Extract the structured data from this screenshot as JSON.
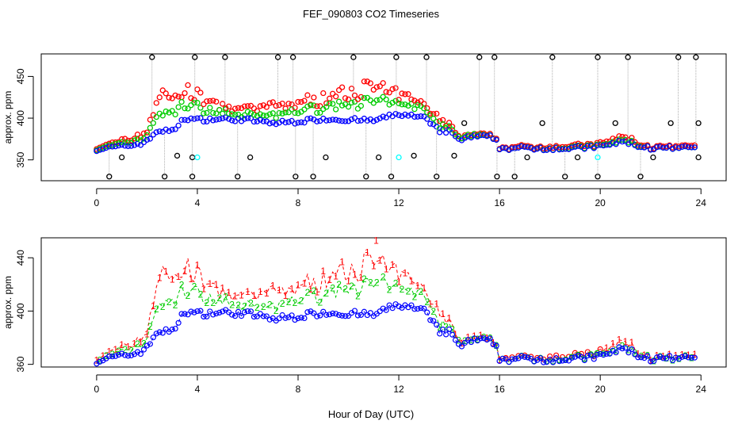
{
  "title": "FEF_090803  CO2 Timeseries",
  "xlabel": "Hour of Day (UTC)",
  "colors": {
    "s1": "#ff0000",
    "s2": "#00cc00",
    "s3": "#0000ff",
    "flag_black": "#000000",
    "flag_cyan": "#00ffff",
    "frame": "#000000",
    "spike_line": "#999999"
  },
  "chart_data": [
    {
      "type": "scatter",
      "ylabel": "approx. ppm",
      "xlim": [
        -2.2,
        25
      ],
      "ylim": [
        325,
        477
      ],
      "xticks": [
        0,
        4,
        8,
        12,
        16,
        20,
        24
      ],
      "yticks": [
        350,
        400,
        450
      ],
      "grid": false,
      "markers": "open circles",
      "baseline": [
        [
          0,
          363
        ],
        [
          1,
          366
        ],
        [
          1.5,
          368
        ],
        [
          2,
          372
        ],
        [
          2.4,
          385
        ],
        [
          2.6,
          385
        ],
        [
          3,
          384
        ],
        [
          3.5,
          400
        ],
        [
          4,
          398
        ],
        [
          5,
          399
        ],
        [
          6,
          398
        ],
        [
          7,
          394
        ],
        [
          8,
          396
        ],
        [
          9,
          399
        ],
        [
          10,
          398
        ],
        [
          11,
          397
        ],
        [
          12,
          405
        ],
        [
          13,
          400
        ],
        [
          13.6,
          385
        ],
        [
          14,
          384
        ],
        [
          14.4,
          374
        ],
        [
          15,
          378
        ],
        [
          15.8,
          377
        ],
        [
          16,
          364
        ],
        [
          17,
          364
        ],
        [
          18,
          364
        ],
        [
          19,
          364
        ],
        [
          20,
          366
        ],
        [
          20.6,
          370
        ],
        [
          21,
          372
        ],
        [
          21.6,
          366
        ],
        [
          22,
          364
        ],
        [
          23,
          364
        ],
        [
          23.8,
          364
        ]
      ],
      "offsets": {
        "s1": [
          [
            0,
            2
          ],
          [
            1,
            6
          ],
          [
            2,
            12
          ],
          [
            2.4,
            40
          ],
          [
            3,
            40
          ],
          [
            4,
            28
          ],
          [
            5,
            14
          ],
          [
            6,
            12
          ],
          [
            7,
            20
          ],
          [
            8,
            22
          ],
          [
            9,
            24
          ],
          [
            10,
            35
          ],
          [
            11,
            40
          ],
          [
            12,
            22
          ],
          [
            13,
            20
          ],
          [
            14,
            8
          ],
          [
            14.5,
            3
          ],
          [
            16,
            1
          ],
          [
            20,
            3
          ],
          [
            21,
            6
          ],
          [
            22,
            1
          ],
          [
            24,
            2
          ]
        ],
        "s2": [
          [
            0,
            1
          ],
          [
            1,
            3
          ],
          [
            2,
            6
          ],
          [
            2.4,
            20
          ],
          [
            3,
            20
          ],
          [
            4,
            15
          ],
          [
            5,
            8
          ],
          [
            6,
            6
          ],
          [
            7,
            9
          ],
          [
            8,
            13
          ],
          [
            9,
            14
          ],
          [
            10,
            20
          ],
          [
            11,
            22
          ],
          [
            12,
            12
          ],
          [
            13,
            11
          ],
          [
            14,
            4
          ],
          [
            14.5,
            2
          ],
          [
            16,
            0
          ],
          [
            20,
            1
          ],
          [
            21,
            2
          ],
          [
            22,
            0
          ],
          [
            24,
            0
          ]
        ]
      },
      "spikes_high": [
        2.2,
        3.9,
        5.1,
        7.2,
        7.8,
        10.2,
        11.9,
        13.1,
        15.2,
        15.8,
        18.1,
        19.9,
        21.1,
        23.1,
        23.8
      ],
      "spikes_low": [
        0.5,
        2.7,
        3.8,
        5.6,
        7.9,
        8.6,
        10.7,
        11.7,
        13.5,
        15.9,
        16.6,
        18.6,
        19.9,
        21.6
      ],
      "flags_mid": [
        [
          1.0,
          353
        ],
        [
          3.2,
          355
        ],
        [
          3.8,
          353
        ],
        [
          6.1,
          353
        ],
        [
          9.1,
          353
        ],
        [
          11.2,
          353
        ],
        [
          12.6,
          355
        ],
        [
          14.2,
          355
        ],
        [
          17.1,
          353
        ],
        [
          19.1,
          353
        ],
        [
          22.1,
          353
        ],
        [
          23.9,
          353
        ],
        [
          14.6,
          394
        ],
        [
          17.7,
          394
        ],
        [
          20.6,
          394
        ],
        [
          22.8,
          394
        ],
        [
          23.9,
          394
        ]
      ],
      "flags_cyan": [
        [
          4.0,
          353
        ],
        [
          12.0,
          353
        ],
        [
          19.9,
          353
        ]
      ]
    },
    {
      "type": "line",
      "ylabel": "approx. ppm",
      "xlim": [
        -2.2,
        25
      ],
      "ylim": [
        358,
        455
      ],
      "xticks": [
        0,
        4,
        8,
        12,
        16,
        20,
        24
      ],
      "yticks": [
        360,
        400,
        440
      ],
      "grid": false,
      "series": [
        {
          "name": "1",
          "color": "#ff0000",
          "marker": "1"
        },
        {
          "name": "2",
          "color": "#00cc00",
          "marker": "2"
        },
        {
          "name": "3",
          "color": "#0000ff",
          "marker": "3"
        }
      ],
      "peak": [
        11.1,
        453
      ]
    }
  ]
}
